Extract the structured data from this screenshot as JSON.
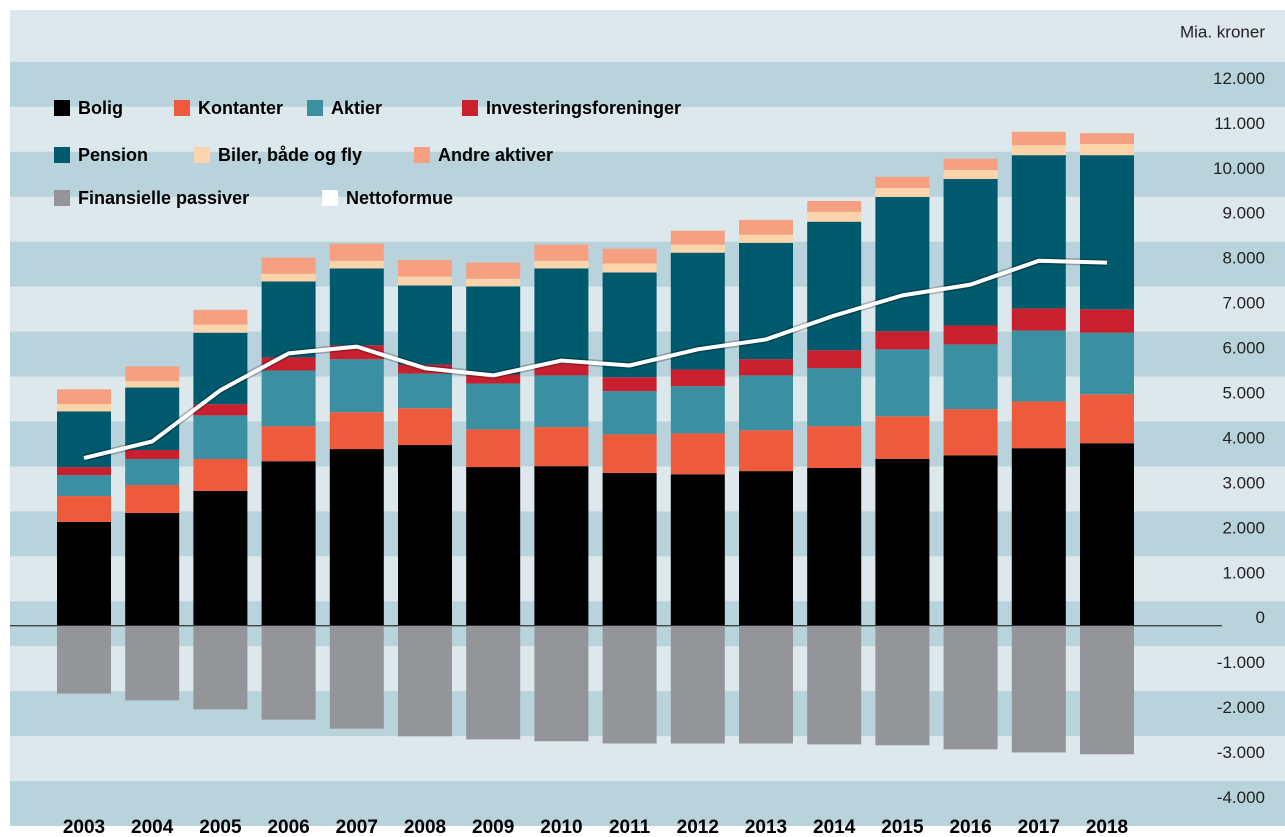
{
  "chart_data": {
    "type": "bar",
    "stacked": true,
    "y_axis_label": "Mia. kroner",
    "categories": [
      "2003",
      "2004",
      "2005",
      "2006",
      "2007",
      "2008",
      "2009",
      "2010",
      "2011",
      "2012",
      "2013",
      "2014",
      "2015",
      "2016",
      "2017",
      "2018"
    ],
    "series": [
      {
        "name": "Bolig",
        "color": "#000000",
        "values": [
          2310,
          2510,
          3000,
          3660,
          3930,
          4020,
          3530,
          3550,
          3400,
          3370,
          3440,
          3510,
          3710,
          3790,
          3950,
          4060
        ]
      },
      {
        "name": "Kontanter",
        "color": "#ee5a3c",
        "values": [
          575,
          620,
          710,
          780,
          820,
          820,
          840,
          870,
          860,
          910,
          910,
          930,
          950,
          1030,
          1040,
          1090
        ]
      },
      {
        "name": "Aktier",
        "color": "#3a8fa0",
        "values": [
          465,
          580,
          970,
          1240,
          1180,
          770,
          1020,
          1150,
          960,
          1050,
          1220,
          1290,
          1490,
          1440,
          1580,
          1370
        ]
      },
      {
        "name": "Investeringsforeninger",
        "color": "#c8202e",
        "values": [
          180,
          200,
          250,
          290,
          310,
          200,
          200,
          270,
          310,
          370,
          360,
          400,
          400,
          420,
          490,
          520
        ]
      },
      {
        "name": "Pension",
        "color": "#005a6e",
        "values": [
          1240,
          1390,
          1590,
          1690,
          1710,
          1760,
          1960,
          2110,
          2330,
          2600,
          2590,
          2860,
          2990,
          3260,
          3410,
          3430
        ]
      },
      {
        "name": "Biler, både og fly",
        "color": "#fcd4ab",
        "values": [
          160,
          140,
          180,
          170,
          170,
          200,
          170,
          170,
          200,
          180,
          180,
          220,
          200,
          200,
          220,
          250
        ]
      },
      {
        "name": "Andre aktiver",
        "color": "#f5a080",
        "values": [
          330,
          330,
          330,
          360,
          380,
          370,
          360,
          360,
          330,
          310,
          330,
          240,
          250,
          250,
          300,
          240
        ]
      },
      {
        "name": "Finansielle passiver",
        "color": "#939598",
        "values": [
          -1510,
          -1660,
          -1860,
          -2090,
          -2290,
          -2460,
          -2530,
          -2570,
          -2620,
          -2620,
          -2620,
          -2640,
          -2660,
          -2750,
          -2820,
          -2860
        ]
      },
      {
        "name": "Nettoformue",
        "color": "#ffffff",
        "type": "line",
        "values": [
          3730,
          4100,
          5240,
          6060,
          6210,
          5730,
          5570,
          5900,
          5790,
          6150,
          6370,
          6900,
          7350,
          7590,
          8120,
          8080
        ]
      }
    ],
    "ylim": [
      -4100,
      13700
    ],
    "yticks": [
      {
        "value": -4000,
        "label": "-4.000"
      },
      {
        "value": -3000,
        "label": "-3.000"
      },
      {
        "value": -2000,
        "label": "-2.000"
      },
      {
        "value": -1000,
        "label": "-1.000"
      },
      0,
      {
        "value": 1000,
        "label": "1.000"
      },
      {
        "value": 2000,
        "label": "2.000"
      },
      {
        "value": 3000,
        "label": "3.000"
      },
      {
        "value": 4000,
        "label": "4.000"
      },
      {
        "value": 5000,
        "label": "5.000"
      },
      {
        "value": 6000,
        "label": "6.000"
      },
      {
        "value": 7000,
        "label": "7.000"
      },
      {
        "value": 8000,
        "label": "8.000"
      },
      {
        "value": 9000,
        "label": "9.000"
      },
      {
        "value": 10000,
        "label": "10.000"
      },
      {
        "value": 11000,
        "label": "11.000"
      },
      {
        "value": 12000,
        "label": "12.000"
      }
    ],
    "grid": "bands"
  }
}
